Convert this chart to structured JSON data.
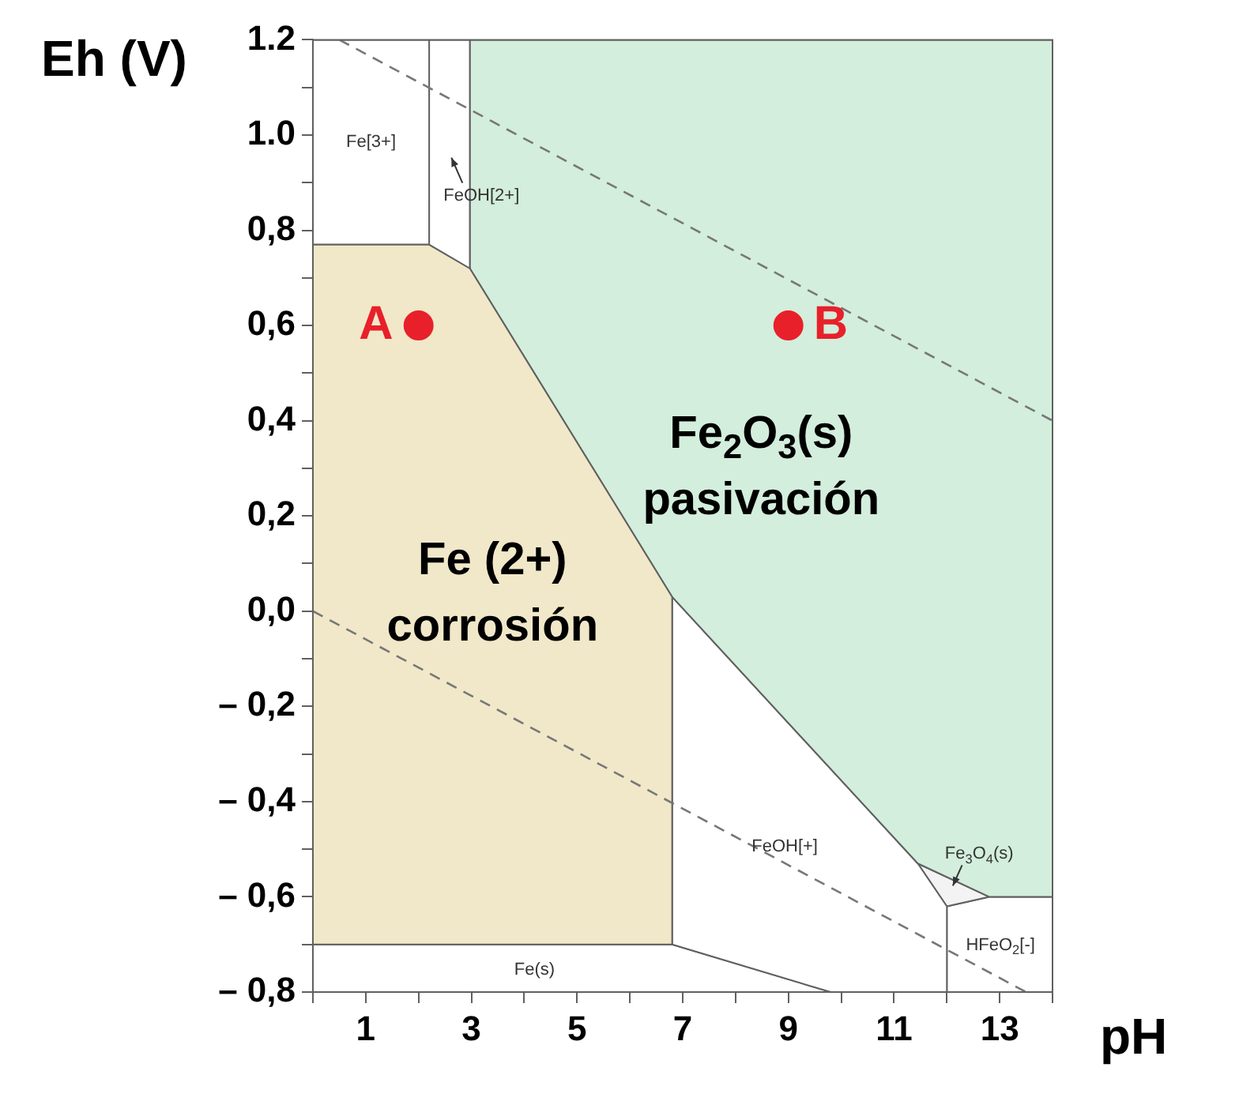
{
  "chart_data": {
    "type": "area",
    "xlabel": "pH",
    "ylabel": "Eh (V)",
    "xlim": [
      0,
      14
    ],
    "ylim": [
      -0.8,
      1.2
    ],
    "xticks": [
      {
        "value": 0,
        "label": null
      },
      1,
      {
        "value": 2,
        "label": null
      },
      3,
      {
        "value": 4,
        "label": null
      },
      5,
      {
        "value": 6,
        "label": null
      },
      7,
      {
        "value": 8,
        "label": null
      },
      9,
      {
        "value": 10,
        "label": null
      },
      11,
      {
        "value": 12,
        "label": null
      },
      13,
      {
        "value": 14,
        "label": null
      }
    ],
    "yticks": [
      {
        "value": -0.8,
        "label": "– 0,8"
      },
      {
        "value": -0.7,
        "label": null
      },
      {
        "value": -0.6,
        "label": "– 0,6"
      },
      {
        "value": -0.5,
        "label": null
      },
      {
        "value": -0.4,
        "label": "– 0,4"
      },
      {
        "value": -0.3,
        "label": null
      },
      {
        "value": -0.2,
        "label": "– 0,2"
      },
      {
        "value": -0.1,
        "label": null
      },
      {
        "value": 0,
        "label": "0,0"
      },
      {
        "value": 0.1,
        "label": null
      },
      {
        "value": 0.2,
        "label": "0,2"
      },
      {
        "value": 0.3,
        "label": null
      },
      {
        "value": 0.4,
        "label": "0,4"
      },
      {
        "value": 0.5,
        "label": null
      },
      {
        "value": 0.6,
        "label": "0,6"
      },
      {
        "value": 0.7,
        "label": null
      },
      {
        "value": 0.8,
        "label": "0,8"
      },
      {
        "value": 0.9,
        "label": null
      },
      {
        "value": 1.0,
        "label": "1.0"
      },
      {
        "value": 1.1,
        "label": null
      },
      {
        "value": 1.2,
        "label": "1.2"
      }
    ],
    "series": [
      {
        "name": "Fe[3+]",
        "color": "#ffffff",
        "x": [
          0,
          2.2,
          2.2,
          0
        ],
        "values": [
          1.2,
          1.2,
          0.77,
          0.77
        ]
      },
      {
        "name": "FeOH[2+]",
        "color": "#ffffff",
        "x": [
          2.2,
          2.97,
          2.97,
          2.2
        ],
        "values": [
          1.2,
          1.2,
          0.72,
          0.77
        ]
      },
      {
        "name": "Fe (2+) corrosión",
        "color": "#f0e8c8",
        "x": [
          0,
          2.2,
          2.97,
          6.8,
          6.8,
          0
        ],
        "values": [
          0.77,
          0.77,
          0.72,
          0.03,
          -0.7,
          -0.7
        ]
      },
      {
        "name": "Fe$_{2}$O$_{3}$(s) pasivación",
        "color": "#d3eedc",
        "x": [
          2.97,
          14,
          14,
          12.8,
          11.45,
          6.8,
          2.97
        ],
        "values": [
          1.2,
          1.2,
          -0.6,
          -0.6,
          -0.53,
          0.03,
          0.72
        ]
      },
      {
        "name": "FeOH[+]",
        "color": "#ffffff",
        "x": [
          6.8,
          11.45,
          12,
          12,
          9.8,
          6.8
        ],
        "values": [
          0.03,
          -0.53,
          -0.62,
          -0.8,
          -0.8,
          -0.7
        ]
      },
      {
        "name": "Fe$_{3}$O$_{4}$(s)",
        "color": "#f3f3f3",
        "x": [
          11.45,
          12.8,
          12
        ],
        "values": [
          -0.53,
          -0.6,
          -0.62
        ]
      },
      {
        "name": "HFeO$_{2}$[-]",
        "color": "#ffffff",
        "x": [
          12,
          12.8,
          14,
          14,
          12
        ],
        "values": [
          -0.62,
          -0.6,
          -0.6,
          -0.8,
          -0.8
        ]
      },
      {
        "name": "Fe(s)",
        "color": "#ffffff",
        "x": [
          0,
          6.8,
          9.8,
          0
        ],
        "values": [
          -0.7,
          -0.7,
          -0.8,
          -0.8
        ]
      },
      {
        "type": "line",
        "color": "#777777",
        "line_style": "dashed",
        "x": [
          0.5,
          14
        ],
        "values": [
          1.2,
          0.4
        ]
      },
      {
        "type": "line",
        "color": "#777777",
        "line_style": "dashed",
        "x": [
          0,
          13.5
        ],
        "values": [
          0,
          -0.8
        ]
      },
      {
        "type": "scatter",
        "name": "A",
        "color": "#e8202a",
        "marker": "circle",
        "x": [
          2
        ],
        "values": [
          0.6
        ]
      },
      {
        "type": "scatter",
        "name": "B",
        "color": "#e8202a",
        "marker": "circle",
        "x": [
          9
        ],
        "values": [
          0.6
        ]
      }
    ]
  }
}
